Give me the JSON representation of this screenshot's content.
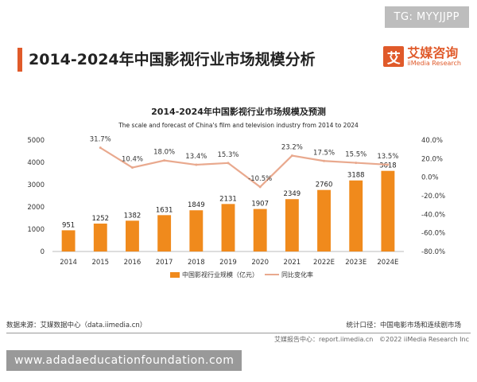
{
  "badge": "TG: MYYJJPP",
  "header": {
    "title": "2014-2024年中国影视行业市场规模分析",
    "logo_mark": "艾",
    "logo_cn": "艾媒咨询",
    "logo_en": "iiMedia Research"
  },
  "colors": {
    "bar": "#f08a1c",
    "line": "#e9a98e",
    "accent": "#e05a2a"
  },
  "chart_data": {
    "type": "bar",
    "title": "2014-2024年中国影视行业市场规模及预测",
    "subtitle": "The scale and forecast of China's film and television industry from 2014 to 2024",
    "categories": [
      "2014",
      "2015",
      "2016",
      "2017",
      "2018",
      "2019",
      "2020",
      "2021",
      "2022E",
      "2023E",
      "2024E"
    ],
    "series": [
      {
        "name": "中国影视行业规模（亿元）",
        "type": "bar",
        "axis": "left",
        "values": [
          951,
          1252,
          1382,
          1631,
          1849,
          2131,
          1907,
          2349,
          2760,
          3188,
          3618
        ],
        "labels": [
          "951",
          "1252",
          "1382",
          "1631",
          "1849",
          "2131",
          "1907",
          "2349",
          "2760",
          "3188",
          "3618"
        ]
      },
      {
        "name": "同比变化率",
        "type": "line",
        "axis": "right",
        "values": [
          null,
          31.7,
          10.4,
          18.0,
          13.4,
          15.3,
          -10.5,
          23.2,
          17.5,
          15.5,
          13.5
        ],
        "labels": [
          "",
          "31.7%",
          "10.4%",
          "18.0%",
          "13.4%",
          "15.3%",
          "-10.5%",
          "23.2%",
          "17.5%",
          "15.5%",
          "13.5%"
        ]
      }
    ],
    "ylim_left": [
      0,
      5000
    ],
    "yticks_left": [
      "0",
      "1000",
      "2000",
      "3000",
      "4000",
      "5000"
    ],
    "ylim_right": [
      -80,
      40
    ],
    "yticks_right": [
      "-80.0%",
      "-60.0%",
      "-40.0%",
      "-20.0%",
      "0.0%",
      "20.0%",
      "40.0%"
    ],
    "legend_position": "bottom",
    "grid": false
  },
  "footer": {
    "source": "数据来源：艾媒数据中心（data.iimedia.cn）",
    "stat_scope": "统计口径：中国电影市场和连续剧市场",
    "report_center": "艾媒报告中心：report.iimedia.cn",
    "copyright": "©2022  iiMedia Research  Inc"
  },
  "watermark": "www.adadaeducationfoundation.com"
}
